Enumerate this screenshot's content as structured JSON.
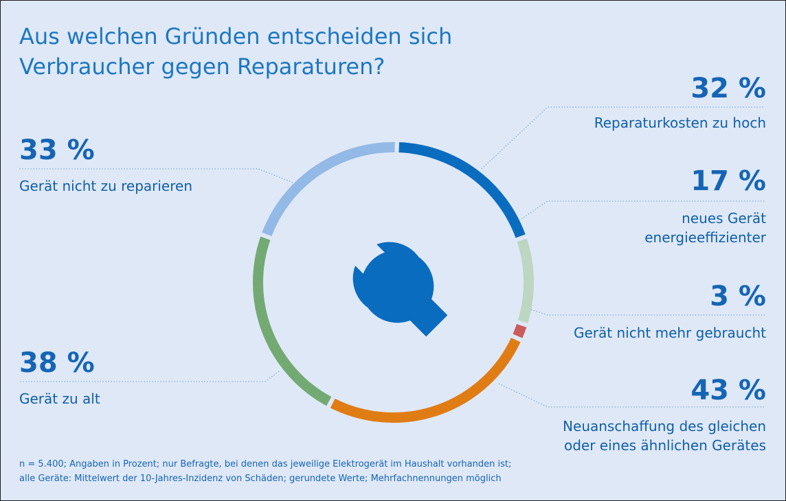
{
  "chart_data": {
    "type": "pie",
    "title": "Aus welchen Gründen entscheiden sich Verbraucher gegen Reparaturen?",
    "series": [
      {
        "label": "Reparaturkosten zu hoch",
        "value": 32,
        "value_text": "32 %",
        "color": "#0a6cbf"
      },
      {
        "label": "neues Gerät energieeffizienter",
        "value": 17,
        "value_text": "17 %",
        "color": "#bdd6c2"
      },
      {
        "label": "Gerät nicht mehr gebraucht",
        "value": 3,
        "value_text": "3 %",
        "color": "#cc5b5b"
      },
      {
        "label": "Neuanschaffung des gleichen oder eines ähnlichen Gerätes",
        "value": 43,
        "value_text": "43 %",
        "color": "#e07c14"
      },
      {
        "label": "Gerät zu alt",
        "value": 38,
        "value_text": "38 %",
        "color": "#73aa73"
      },
      {
        "label": "Gerät nicht zu reparieren",
        "value": 33,
        "value_text": "33 %",
        "color": "#93b9e6"
      }
    ],
    "center_icon": "wrench-icon",
    "footnote_lines": [
      "n = 5.400; Angaben in Prozent; nur Befragte, bei denen das jeweilige Elektrogerät im Haushalt vorhanden ist;",
      "alle Geräte: Mittelwert der 10-Jahres-Inzidenz von Schäden; gerundete Werte; Mehrfachnennungen möglich"
    ]
  },
  "colors": {
    "background": "#dfe8f6",
    "title": "#1d77c0",
    "text": "#1565b5",
    "wrench": "#0a6cbf"
  }
}
